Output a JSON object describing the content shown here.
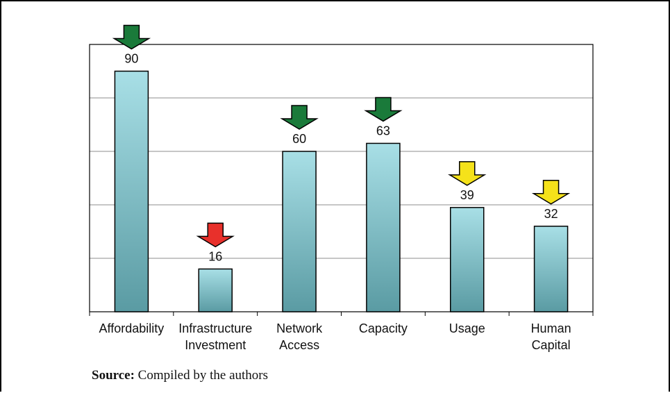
{
  "chart_data": {
    "type": "bar",
    "categories": [
      [
        "Affordability"
      ],
      [
        "Infrastructure",
        "Investment"
      ],
      [
        "Network",
        "Access"
      ],
      [
        "Capacity"
      ],
      [
        "Usage"
      ],
      [
        "Human",
        "Capital"
      ]
    ],
    "values": [
      90,
      16,
      60,
      63,
      39,
      32
    ],
    "data_labels": [
      "90",
      "16",
      "60",
      "63",
      "39",
      "32"
    ],
    "indicators": [
      "green-down-arrow",
      "red-down-arrow",
      "green-down-arrow",
      "green-down-arrow",
      "yellow-down-arrow",
      "yellow-down-arrow"
    ],
    "indicator_colors": {
      "green-down-arrow": "#1a7a3a",
      "red-down-arrow": "#e8302b",
      "yellow-down-arrow": "#f5e21a"
    },
    "bar_color_top": "#a8dfe6",
    "bar_color_bottom": "#5a9ba3",
    "ylim": [
      0,
      100
    ],
    "grid": true,
    "title": "",
    "xlabel": "",
    "ylabel": ""
  },
  "source": {
    "label": "Source:",
    "text": " Compiled by the authors"
  }
}
